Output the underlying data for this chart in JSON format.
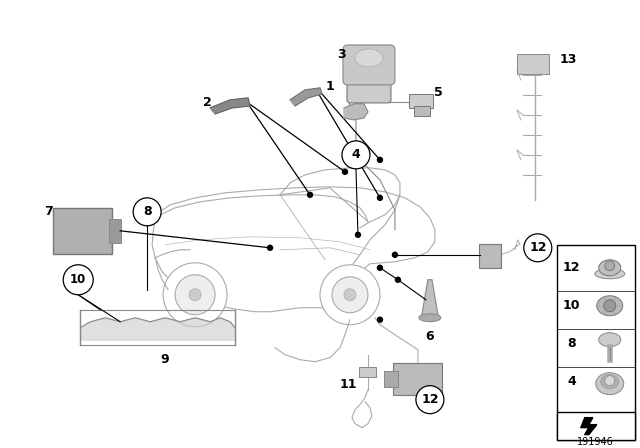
{
  "bg_color": "#ffffff",
  "diagram_ref": "191946",
  "car_color": "#dddddd",
  "car_line_color": "#aaaaaa",
  "part_color": "#bbbbbb",
  "line_color": "#000000"
}
